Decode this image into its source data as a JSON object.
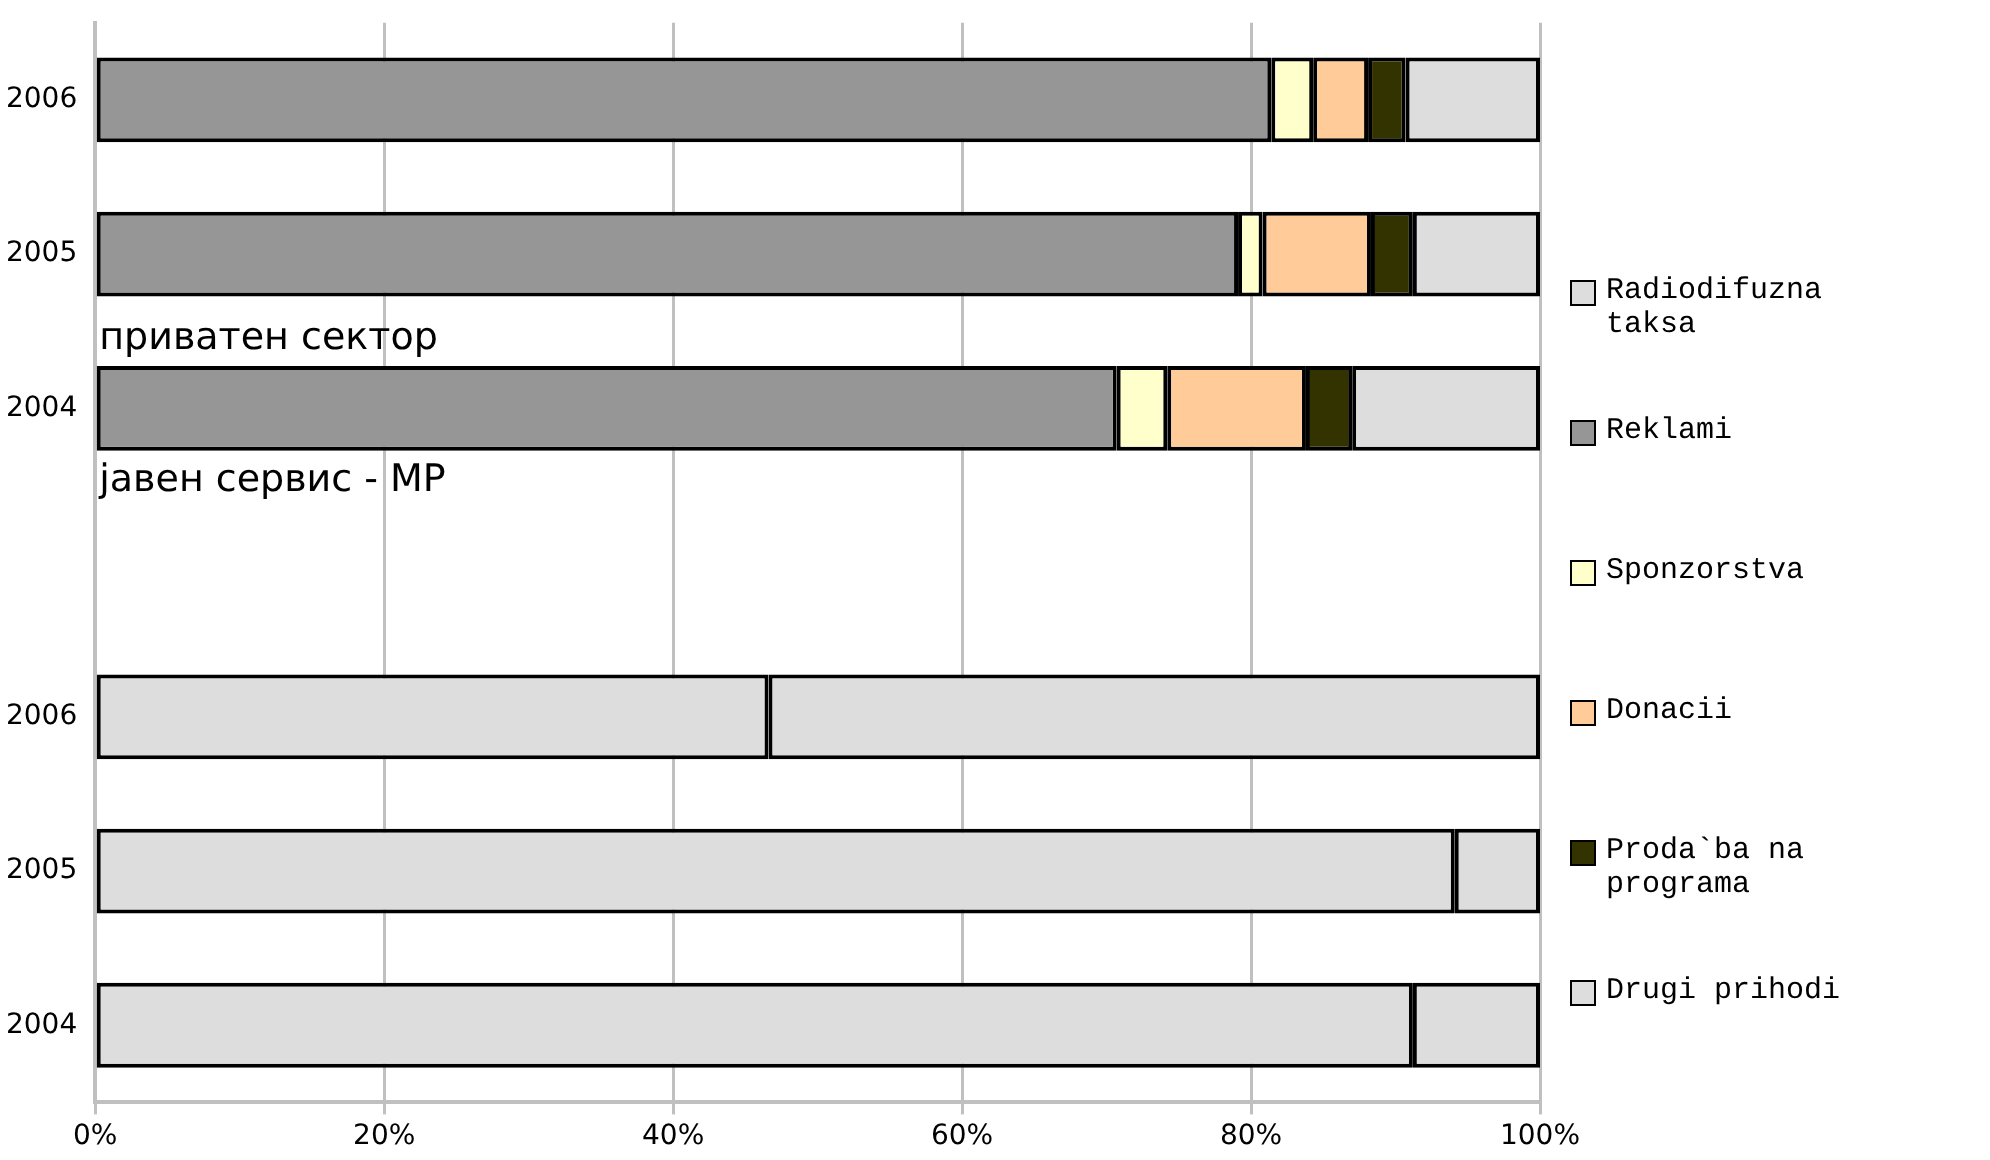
{
  "chart_data": {
    "type": "bar",
    "orientation": "horizontal",
    "stacked": true,
    "categories": [
      "2006",
      "2005",
      "2004",
      null,
      "2006",
      "2005",
      "2004"
    ],
    "series": [
      {
        "name": "Radiodifuzna taksa",
        "color": "#dddddd",
        "values": [
          null,
          null,
          null,
          null,
          46.6,
          94.1,
          91.2
        ]
      },
      {
        "name": "Reklami",
        "color": "#969696",
        "values": [
          81.4,
          79.1,
          70.7,
          null,
          null,
          null,
          null
        ]
      },
      {
        "name": "Sponzorstva",
        "color": "#ffffcc",
        "values": [
          2.9,
          1.7,
          3.5,
          null,
          null,
          null,
          null
        ]
      },
      {
        "name": "Donacii",
        "color": "#ffcc99",
        "values": [
          3.8,
          7.5,
          9.6,
          null,
          null,
          null,
          null
        ]
      },
      {
        "name": "Proda`ba na programa",
        "color": "#333300",
        "values": [
          2.6,
          2.9,
          3.2,
          null,
          null,
          null,
          null
        ]
      },
      {
        "name": "Drugi prihodi",
        "color": "#dddddd",
        "values": [
          9.3,
          8.8,
          13.0,
          null,
          53.4,
          5.9,
          8.8
        ]
      }
    ],
    "xlim": [
      0,
      100
    ],
    "xticks": [
      {
        "value": 0,
        "label": "0%"
      },
      {
        "value": 20,
        "label": "20%"
      },
      {
        "value": 40,
        "label": "40%"
      },
      {
        "value": 60,
        "label": "60%"
      },
      {
        "value": 80,
        "label": "80%"
      },
      {
        "value": 100,
        "label": "100%"
      }
    ],
    "grid": "x",
    "legend": "right",
    "annotations": [
      "приватен сектор",
      "јавен сервис - МР"
    ]
  }
}
